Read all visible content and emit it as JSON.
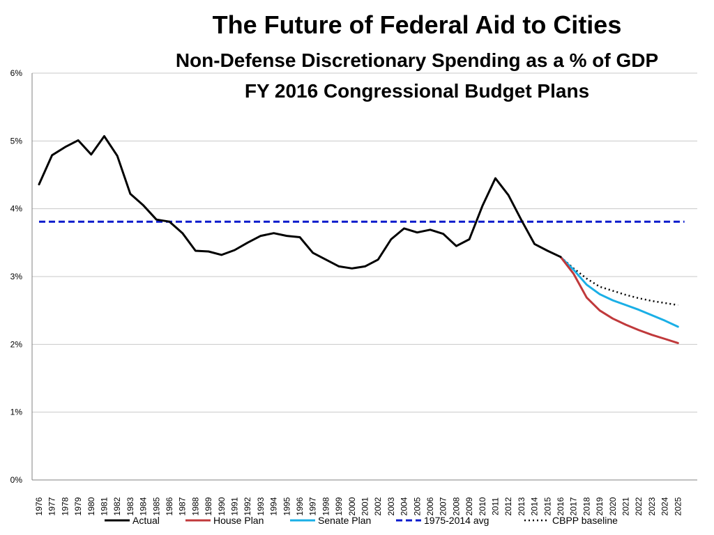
{
  "chart_data": {
    "type": "line",
    "title": "The Future of Federal Aid to Cities",
    "subtitle_1": "Non-Defense Discretionary Spending as a % of GDP",
    "subtitle_2": "FY 2016 Congressional Budget Plans",
    "xlabel": "",
    "ylabel": "",
    "ylim": [
      0,
      6
    ],
    "y_ticks": [
      0,
      1,
      2,
      3,
      4,
      5,
      6
    ],
    "y_tick_labels": [
      "0%",
      "1%",
      "2%",
      "3%",
      "4%",
      "5%",
      "6%"
    ],
    "grid": "horizontal",
    "legend_position": "bottom",
    "categories": [
      "1976",
      "1977",
      "1978",
      "1979",
      "1980",
      "1981",
      "1982",
      "1983",
      "1984",
      "1985",
      "1986",
      "1987",
      "1988",
      "1989",
      "1990",
      "1991",
      "1992",
      "1993",
      "1994",
      "1995",
      "1996",
      "1997",
      "1998",
      "1999",
      "2000",
      "2001",
      "2002",
      "2003",
      "2004",
      "2005",
      "2006",
      "2007",
      "2008",
      "2009",
      "2010",
      "2011",
      "2012",
      "2013",
      "2014",
      "2015",
      "2016",
      "2017",
      "2018",
      "2019",
      "2020",
      "2021",
      "2022",
      "2023",
      "2024",
      "2025"
    ],
    "series": [
      {
        "name": "Actual",
        "color": "#000000",
        "style": "solid",
        "x": [
          1976,
          1977,
          1978,
          1979,
          1980,
          1981,
          1982,
          1983,
          1984,
          1985,
          1986,
          1987,
          1988,
          1989,
          1990,
          1991,
          1992,
          1993,
          1994,
          1995,
          1996,
          1997,
          1998,
          1999,
          2000,
          2001,
          2002,
          2003,
          2004,
          2005,
          2006,
          2007,
          2008,
          2009,
          2010,
          2011,
          2012,
          2013,
          2014,
          2015,
          2016
        ],
        "values": [
          4.36,
          4.79,
          4.91,
          5.01,
          4.8,
          5.07,
          4.78,
          4.22,
          4.05,
          3.84,
          3.81,
          3.64,
          3.38,
          3.37,
          3.32,
          3.39,
          3.5,
          3.6,
          3.64,
          3.6,
          3.58,
          3.35,
          3.25,
          3.15,
          3.12,
          3.15,
          3.25,
          3.55,
          3.71,
          3.65,
          3.69,
          3.63,
          3.45,
          3.55,
          4.04,
          4.45,
          4.2,
          3.83,
          3.48,
          3.38,
          3.29
        ]
      },
      {
        "name": "House Plan",
        "color": "#C0393B",
        "style": "solid",
        "x": [
          2016,
          2017,
          2018,
          2019,
          2020,
          2021,
          2022,
          2023,
          2024,
          2025
        ],
        "values": [
          3.29,
          3.04,
          2.69,
          2.5,
          2.38,
          2.29,
          2.21,
          2.14,
          2.08,
          2.02
        ]
      },
      {
        "name": "Senate Plan",
        "color": "#1AAFE6",
        "style": "solid",
        "x": [
          2016,
          2017,
          2018,
          2019,
          2020,
          2021,
          2022,
          2023,
          2024,
          2025
        ],
        "values": [
          3.29,
          3.1,
          2.88,
          2.74,
          2.65,
          2.58,
          2.51,
          2.43,
          2.35,
          2.26
        ]
      },
      {
        "name": "1975-2014 avg",
        "color": "#0A1ACC",
        "style": "dashed",
        "x": [
          1976,
          2025.5
        ],
        "values": [
          3.81,
          3.81
        ]
      },
      {
        "name": "CBPP baseline",
        "color": "#000000",
        "style": "dotted",
        "x": [
          2016,
          2017,
          2018,
          2019,
          2020,
          2021,
          2022,
          2023,
          2024,
          2025
        ],
        "values": [
          3.29,
          3.12,
          2.97,
          2.85,
          2.79,
          2.73,
          2.68,
          2.64,
          2.61,
          2.58
        ]
      }
    ]
  }
}
